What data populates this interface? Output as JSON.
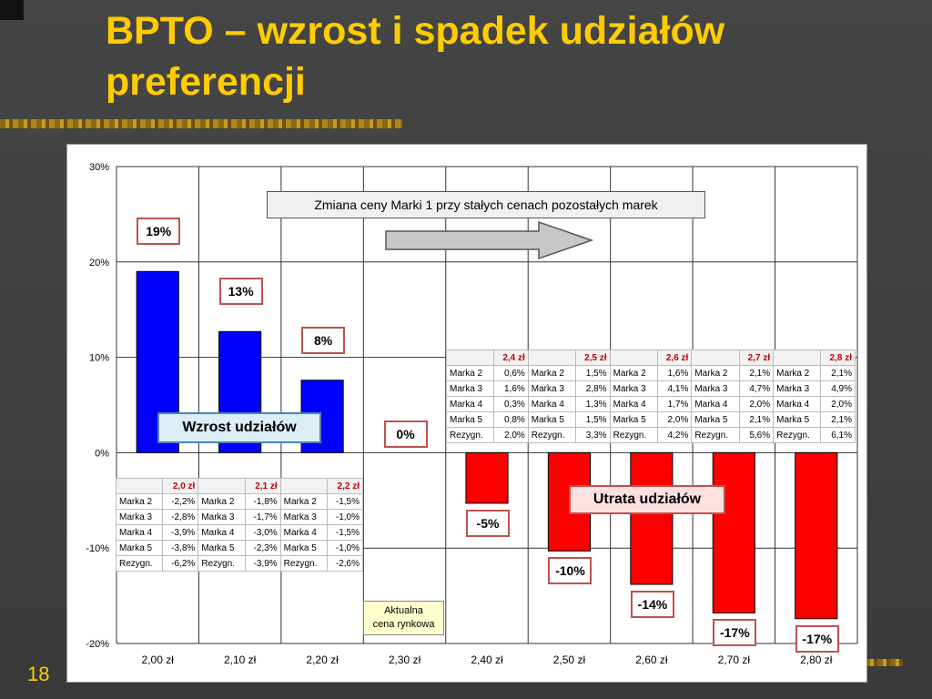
{
  "slide": {
    "title": "BPTO – wzrost i spadek udziałów preferencji",
    "number": "18"
  },
  "chart_data": {
    "type": "bar",
    "categories": [
      "2,00 zł",
      "2,10 zł",
      "2,20 zł",
      "2,30 zł",
      "2,40 zł",
      "2,50 zł",
      "2,60 zł",
      "2,70 zł",
      "2,80 zł"
    ],
    "values": [
      19,
      12.7,
      7.6,
      0,
      -5.3,
      -10.3,
      -13.8,
      -16.8,
      -17.4
    ],
    "value_labels": [
      "19%",
      "13%",
      "8%",
      "0%",
      "-5%",
      "-10%",
      "-14%",
      "-17%",
      "-17%"
    ],
    "bar_colors": [
      "#0000ff",
      "#0000ff",
      "#0000ff",
      "#0000ff",
      "#ff0000",
      "#ff0000",
      "#ff0000",
      "#ff0000",
      "#ff0000"
    ],
    "ylim": [
      -20,
      30
    ],
    "yticks": [
      30,
      20,
      10,
      0,
      -10,
      -20
    ],
    "ytick_labels": [
      "30%",
      "20%",
      "10%",
      "0%",
      "-10%",
      "-20%"
    ],
    "grid": true,
    "annotations": {
      "subtitle": "Zmiana ceny Marki 1 przy stałych cenach pozostałych marek",
      "growth": "Wzrost udziałów",
      "loss": "Utrata udziałów",
      "current_price_line1": "Aktualna",
      "current_price_line2": "cena rynkowa"
    }
  },
  "tables": {
    "left": {
      "prices": [
        "2,0 zł",
        "2,1 zł",
        "2,2 zł"
      ],
      "rows": [
        {
          "cells": [
            "Marka 2",
            "-2,2%",
            "Marka 2",
            "-1,8%",
            "Marka 2",
            "-1,5%"
          ]
        },
        {
          "cells": [
            "Marka 3",
            "-2,8%",
            "Marka 3",
            "-1,7%",
            "Marka 3",
            "-1,0%"
          ]
        },
        {
          "cells": [
            "Marka 4",
            "-3,9%",
            "Marka 4",
            "-3,0%",
            "Marka 4",
            "-1,5%"
          ]
        },
        {
          "cells": [
            "Marka 5",
            "-3,8%",
            "Marka 5",
            "-2,3%",
            "Marka 5",
            "-1,0%"
          ]
        },
        {
          "cells": [
            "Rezygn.",
            "-6,2%",
            "Rezygn.",
            "-3,9%",
            "Rezygn.",
            "-2,6%"
          ]
        }
      ]
    },
    "right": {
      "prices": [
        "2,4 zł",
        "2,5 zł",
        "2,6 zł",
        "2,7 zł",
        "2,8 zł"
      ],
      "rows": [
        {
          "cells": [
            "Marka 2",
            "0,6%",
            "Marka 2",
            "1,5%",
            "Marka 2",
            "1,6%",
            "Marka 2",
            "2,1%",
            "Marka 2",
            "2,1%"
          ]
        },
        {
          "cells": [
            "Marka 3",
            "1,6%",
            "Marka 3",
            "2,8%",
            "Marka 3",
            "4,1%",
            "Marka 3",
            "4,7%",
            "Marka 3",
            "4,9%"
          ]
        },
        {
          "cells": [
            "Marka 4",
            "0,3%",
            "Marka 4",
            "1,3%",
            "Marka 4",
            "1,7%",
            "Marka 4",
            "2,0%",
            "Marka 4",
            "2,0%"
          ]
        },
        {
          "cells": [
            "Marka 5",
            "0,8%",
            "Marka 5",
            "1,5%",
            "Marka 5",
            "2,0%",
            "Marka 5",
            "2,1%",
            "Marka 5",
            "2,1%"
          ]
        },
        {
          "cells": [
            "Rezygn.",
            "2,0%",
            "Rezygn.",
            "3,3%",
            "Rezygn.",
            "4,2%",
            "Rezygn.",
            "5,6%",
            "Rezygn.",
            "6,1%"
          ]
        }
      ]
    }
  }
}
